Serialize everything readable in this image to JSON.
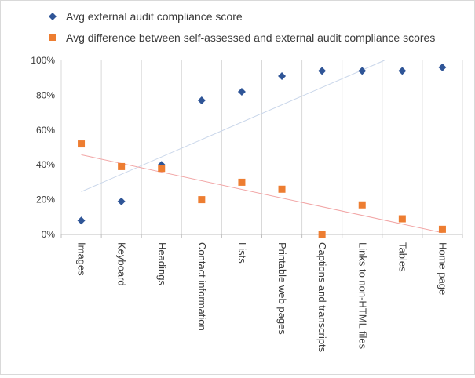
{
  "chart_data": {
    "type": "scatter",
    "title": "",
    "xlabel": "",
    "ylabel": "",
    "categories": [
      "Images",
      "Keyboard",
      "Headings",
      "Contact information",
      "Lists",
      "Printable web pages",
      "Captions and transcripts",
      "Links to non-HTML files",
      "Tables",
      "Home page"
    ],
    "ylim": [
      0,
      100
    ],
    "y_ticks": [
      "0%",
      "20%",
      "40%",
      "60%",
      "80%",
      "100%"
    ],
    "y_tick_values": [
      0,
      20,
      40,
      60,
      80,
      100
    ],
    "grid": "vertical",
    "legend_position": "top",
    "series": [
      {
        "name": "Avg external audit compliance score",
        "marker": "diamond",
        "color": "#2f5597",
        "trendline_color": "#c9d6ea",
        "values": [
          8,
          19,
          40,
          77,
          82,
          91,
          94,
          94,
          94,
          96
        ]
      },
      {
        "name": "Avg difference between self-assessed and external audit compliance scores",
        "marker": "square",
        "color": "#ed7d31",
        "trendline_color": "#f2a7a7",
        "values": [
          52,
          39,
          38,
          20,
          30,
          26,
          0,
          17,
          9,
          3
        ]
      }
    ]
  }
}
